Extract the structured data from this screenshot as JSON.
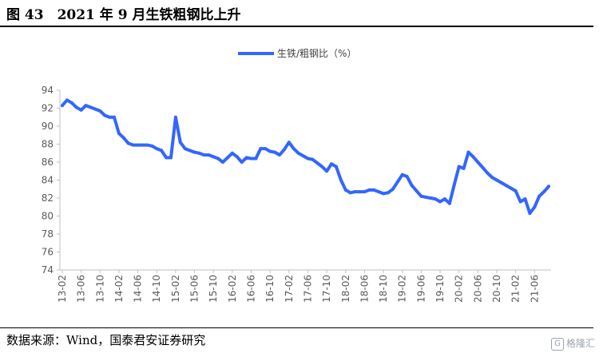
{
  "figure": {
    "title": "图 43　2021 年 9 月生铁粗钢比上升",
    "source": "数据来源：Wind，国泰君安证券研究",
    "watermark": "格隆汇",
    "watermark_badge": "G"
  },
  "chart_data": {
    "type": "line",
    "title": "",
    "xlabel": "",
    "ylabel": "",
    "ylim": [
      74,
      94
    ],
    "yticks": [
      74,
      76,
      78,
      80,
      82,
      84,
      86,
      88,
      90,
      92,
      94
    ],
    "xticks": [
      "13-02",
      "13-06",
      "13-10",
      "14-02",
      "14-06",
      "14-10",
      "15-02",
      "15-06",
      "15-10",
      "16-02",
      "16-06",
      "16-10",
      "17-02",
      "17-06",
      "17-10",
      "18-02",
      "18-06",
      "18-10",
      "19-02",
      "19-06",
      "19-10",
      "20-02",
      "20-06",
      "20-10",
      "21-02",
      "21-06"
    ],
    "x": [
      "13-02",
      "13-03",
      "13-04",
      "13-05",
      "13-06",
      "13-07",
      "13-08",
      "13-09",
      "13-10",
      "13-11",
      "13-12",
      "14-01",
      "14-02",
      "14-03",
      "14-04",
      "14-05",
      "14-06",
      "14-07",
      "14-08",
      "14-09",
      "14-10",
      "14-11",
      "14-12",
      "15-01",
      "15-02",
      "15-03",
      "15-04",
      "15-05",
      "15-06",
      "15-07",
      "15-08",
      "15-09",
      "15-10",
      "15-11",
      "15-12",
      "16-01",
      "16-02",
      "16-03",
      "16-04",
      "16-05",
      "16-06",
      "16-07",
      "16-08",
      "16-09",
      "16-10",
      "16-11",
      "16-12",
      "17-01",
      "17-02",
      "17-03",
      "17-04",
      "17-05",
      "17-06",
      "17-07",
      "17-08",
      "17-09",
      "17-10",
      "17-11",
      "17-12",
      "18-01",
      "18-02",
      "18-03",
      "18-04",
      "18-05",
      "18-06",
      "18-07",
      "18-08",
      "18-09",
      "18-10",
      "18-11",
      "18-12",
      "19-01",
      "19-02",
      "19-03",
      "19-04",
      "19-05",
      "19-06",
      "19-07",
      "19-08",
      "19-09",
      "19-10",
      "19-11",
      "19-12",
      "20-01",
      "20-02",
      "20-03",
      "20-04",
      "20-05",
      "20-06",
      "20-07",
      "20-08",
      "20-09",
      "20-10",
      "20-11",
      "20-12",
      "21-01",
      "21-02",
      "21-03",
      "21-04",
      "21-05",
      "21-06",
      "21-07",
      "21-08",
      "21-09"
    ],
    "grid": false,
    "legend_position": "top",
    "series": [
      {
        "name": "生铁/粗钢比（%）",
        "color": "#3366ff",
        "values": [
          92.3,
          92.9,
          92.6,
          92.1,
          91.8,
          92.3,
          92.1,
          91.9,
          91.7,
          91.2,
          91.0,
          91.0,
          89.2,
          88.7,
          88.1,
          87.9,
          87.9,
          87.9,
          87.9,
          87.8,
          87.5,
          87.3,
          86.5,
          86.5,
          91.0,
          88.2,
          87.5,
          87.3,
          87.1,
          87.0,
          86.8,
          86.8,
          86.6,
          86.4,
          86.0,
          86.5,
          87.0,
          86.6,
          86.0,
          86.5,
          86.4,
          86.4,
          87.5,
          87.5,
          87.2,
          87.1,
          86.8,
          87.4,
          88.2,
          87.5,
          87.0,
          86.7,
          86.4,
          86.3,
          85.9,
          85.5,
          85.0,
          85.8,
          85.5,
          84.0,
          82.9,
          82.6,
          82.7,
          82.7,
          82.7,
          82.9,
          82.9,
          82.7,
          82.5,
          82.6,
          83.0,
          83.8,
          84.6,
          84.4,
          83.4,
          82.8,
          82.2,
          82.1,
          82.0,
          81.9,
          81.6,
          81.9,
          81.4,
          83.5,
          85.5,
          85.3,
          87.1,
          86.6,
          86.0,
          85.4,
          84.8,
          84.3,
          84.0,
          83.7,
          83.4,
          83.1,
          82.8,
          81.6,
          81.9,
          80.3,
          81.0,
          82.2,
          82.7,
          83.3
        ]
      }
    ]
  }
}
